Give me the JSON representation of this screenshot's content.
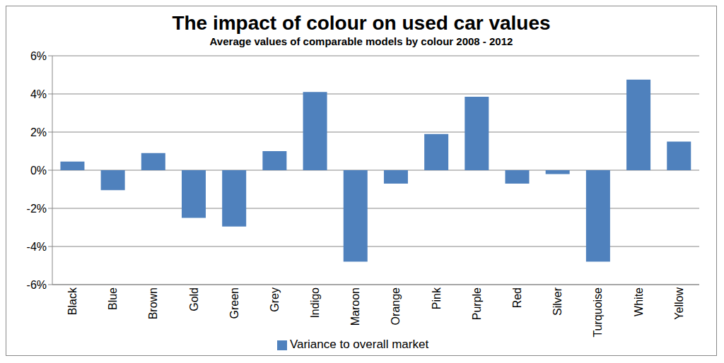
{
  "chart_data": {
    "type": "bar",
    "title": "The impact of colour on used car values",
    "subtitle": "Average values of comparable models by colour 2008 - 2012",
    "categories": [
      "Black",
      "Blue",
      "Brown",
      "Gold",
      "Green",
      "Grey",
      "Indigo",
      "Maroon",
      "Orange",
      "Pink",
      "Purple",
      "Red",
      "Silver",
      "Turquoise",
      "White",
      "Yellow"
    ],
    "series": [
      {
        "name": "Variance to overall market",
        "color": "#4f81bd",
        "values": [
          0.45,
          -1.05,
          0.9,
          -2.5,
          -2.95,
          1.0,
          4.1,
          -4.8,
          -0.7,
          1.9,
          3.85,
          -0.7,
          -0.2,
          -4.8,
          4.75,
          1.5
        ]
      }
    ],
    "ylim": [
      -6,
      6
    ],
    "yticks": [
      {
        "value": -6,
        "label": "-6%"
      },
      {
        "value": -4,
        "label": "-4%"
      },
      {
        "value": -2,
        "label": "-2%"
      },
      {
        "value": 0,
        "label": "0%"
      },
      {
        "value": 2,
        "label": "2%"
      },
      {
        "value": 4,
        "label": "4%"
      },
      {
        "value": 6,
        "label": "6%"
      }
    ],
    "grid": true,
    "legend": "bottom"
  }
}
